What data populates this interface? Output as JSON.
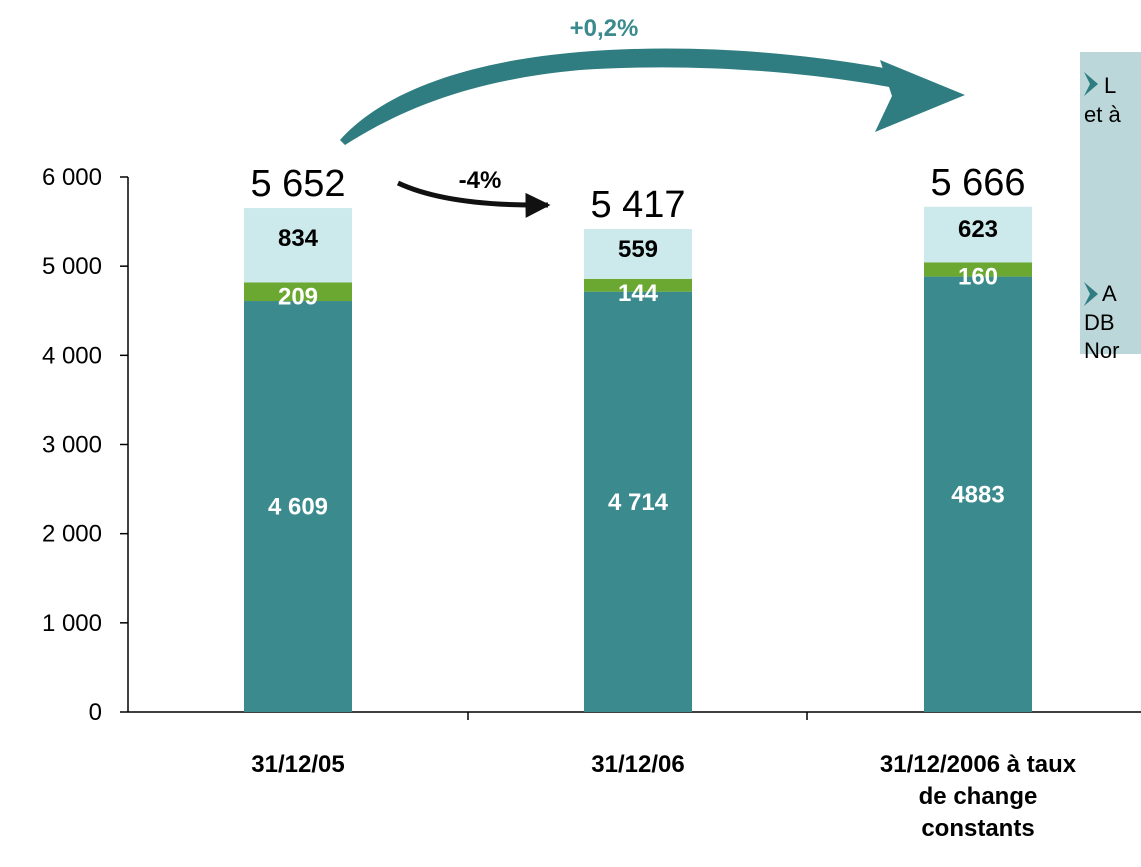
{
  "colors": {
    "base": "#3a8a8e",
    "middle": "#6aa832",
    "top": "#cce9ec",
    "arrow": "#2f7d80",
    "panel": "#bcd7d9",
    "bullet": "#2f7d80"
  },
  "chart_data": {
    "type": "bar",
    "stacked": true,
    "categories": [
      "31/12/05",
      "31/12/06",
      "31/12/2006 à taux\nde change\nconstants"
    ],
    "series": [
      {
        "values": [
          4609,
          4714,
          4883
        ],
        "labels": [
          "4 609",
          "4 714",
          "4883"
        ]
      },
      {
        "values": [
          209,
          144,
          160
        ],
        "labels": [
          "209",
          "144",
          "160"
        ]
      },
      {
        "values": [
          834,
          559,
          623
        ],
        "labels": [
          "834",
          "559",
          "623"
        ]
      }
    ],
    "totals": [
      "5 652",
      "5 417",
      "5 666"
    ],
    "ylim": [
      0,
      6000
    ],
    "yticks": [
      0,
      1000,
      2000,
      3000,
      4000,
      5000,
      6000
    ],
    "ytick_labels": [
      "0",
      "1 000",
      "2 000",
      "3 000",
      "4 000",
      "5 000",
      "6 000"
    ],
    "annotations": [
      {
        "text": "+0,2%",
        "from": "31/12/05",
        "to": "31/12/2006 à taux de change constants"
      },
      {
        "text": "-4%",
        "from": "31/12/05",
        "to": "31/12/06"
      }
    ],
    "grid": false
  },
  "side_panel": {
    "lines": [
      "L",
      "et à",
      "A",
      "DB",
      "Nor"
    ]
  }
}
